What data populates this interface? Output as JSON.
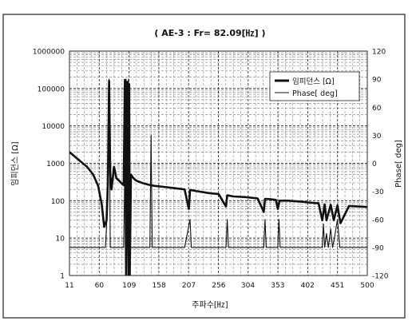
{
  "chart_data": {
    "type": "line",
    "title": "( AE-3 : Fr= 82.09[㎐] )",
    "xlabel": "주파수[㎐]",
    "ylabel_left": "임피던스 [Ω]",
    "ylabel_right": "Phase[ deg]",
    "x_ticks": [
      "11",
      "60",
      "109",
      "158",
      "207",
      "256",
      "304",
      "353",
      "402",
      "451",
      "500"
    ],
    "y_left_ticks": [
      "1",
      "10",
      "100",
      "1000",
      "10000",
      "100000",
      "1000000"
    ],
    "y_right_ticks": [
      "-120",
      "-90",
      "-60",
      "-30",
      "0",
      "30",
      "60",
      "90",
      "120"
    ],
    "xlim": [
      11,
      500
    ],
    "ylim_left": [
      1,
      1000000
    ],
    "ylim_right": [
      -120,
      120
    ],
    "y_left_scale": "log",
    "grid": true,
    "legend_position": "top-right",
    "series": [
      {
        "name": "임피던스 [Ω]",
        "axis": "left",
        "x": [
          11,
          20,
          30,
          40,
          50,
          58,
          64,
          68,
          72,
          74,
          76,
          78,
          80,
          82,
          84,
          86,
          88,
          92,
          96,
          100,
          102,
          104,
          106,
          108,
          109,
          110,
          112,
          116,
          120,
          130,
          140,
          150,
          160,
          180,
          200,
          207,
          209,
          220,
          240,
          256,
          268,
          270,
          280,
          300,
          320,
          330,
          332,
          340,
          350,
          353,
          356,
          370,
          390,
          402,
          420,
          426,
          430,
          433,
          440,
          445,
          451,
          456,
          470,
          485,
          500
        ],
        "y": [
          2000,
          1500,
          1100,
          800,
          500,
          250,
          80,
          20,
          30,
          300,
          160000,
          500,
          200,
          400,
          800,
          600,
          400,
          350,
          300,
          260,
          170000,
          1,
          150000,
          1,
          130000,
          1,
          500,
          400,
          350,
          300,
          270,
          250,
          240,
          220,
          200,
          60,
          195,
          180,
          160,
          150,
          70,
          140,
          130,
          125,
          115,
          50,
          112,
          110,
          105,
          60,
          100,
          100,
          95,
          90,
          85,
          30,
          80,
          30,
          78,
          30,
          75,
          25,
          72,
          70,
          68
        ]
      },
      {
        "name": "Phase[ deg]",
        "axis": "right",
        "x": [
          11,
          60,
          70,
          74,
          76,
          78,
          82,
          100,
          104,
          106,
          108,
          110,
          114,
          143,
          145,
          147,
          200,
          209,
          211,
          268,
          270,
          272,
          330,
          332,
          334,
          353,
          355,
          357,
          426,
          428,
          430,
          433,
          436,
          440,
          443,
          446,
          451,
          455,
          460,
          480,
          500
        ],
        "y": [
          -90,
          -90,
          -90,
          -40,
          90,
          -90,
          -90,
          -90,
          90,
          -90,
          90,
          -90,
          -90,
          -90,
          30,
          -90,
          -90,
          -60,
          -90,
          -90,
          -60,
          -90,
          -90,
          -60,
          -90,
          -90,
          -60,
          -90,
          -90,
          -65,
          -90,
          -75,
          -90,
          -70,
          -90,
          -80,
          -60,
          -90,
          -90,
          -90,
          -90
        ]
      }
    ]
  }
}
